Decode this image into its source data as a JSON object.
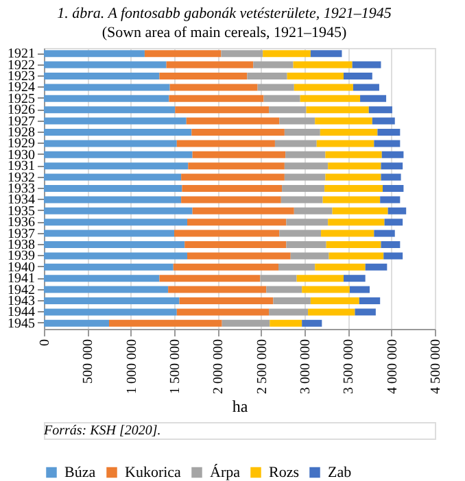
{
  "chart_data": {
    "type": "bar",
    "orientation": "horizontal",
    "stacked": true,
    "title": "1. ábra. A fontosabb gabonák vetésterülete, 1921–1945",
    "subtitle": "(Sown area of main cereals, 1921–1945)",
    "xlabel": "ha",
    "categories": [
      "1921",
      "1922",
      "1923",
      "1924",
      "1925",
      "1926",
      "1927",
      "1928",
      "1929",
      "1930",
      "1931",
      "1932",
      "1933",
      "1934",
      "1935",
      "1936",
      "1937",
      "1938",
      "1939",
      "1940",
      "1941",
      "1942",
      "1943",
      "1944",
      "1945"
    ],
    "series": [
      {
        "name": "Búza",
        "color": "#5b9bd5",
        "values": [
          1160000,
          1410000,
          1330000,
          1450000,
          1440000,
          1510000,
          1640000,
          1700000,
          1530000,
          1710000,
          1660000,
          1580000,
          1590000,
          1580000,
          1710000,
          1650000,
          1500000,
          1620000,
          1650000,
          1490000,
          1330000,
          1430000,
          1560000,
          1530000,
          750000
        ]
      },
      {
        "name": "Kukorica",
        "color": "#ed7d31",
        "values": [
          880000,
          1000000,
          1010000,
          1010000,
          1090000,
          1080000,
          1070000,
          1070000,
          1130000,
          1070000,
          1110000,
          1190000,
          1150000,
          1150000,
          1170000,
          1140000,
          1210000,
          1170000,
          1190000,
          1210000,
          1160000,
          1130000,
          1080000,
          1060000,
          1300000
        ]
      },
      {
        "name": "Árpa",
        "color": "#a5a5a5",
        "values": [
          480000,
          460000,
          460000,
          420000,
          420000,
          430000,
          410000,
          410000,
          480000,
          460000,
          500000,
          470000,
          490000,
          480000,
          440000,
          480000,
          480000,
          460000,
          440000,
          420000,
          420000,
          410000,
          430000,
          450000,
          550000
        ]
      },
      {
        "name": "Rozs",
        "color": "#ffc000",
        "values": [
          550000,
          680000,
          650000,
          680000,
          690000,
          720000,
          660000,
          660000,
          660000,
          650000,
          610000,
          640000,
          670000,
          660000,
          640000,
          650000,
          610000,
          630000,
          630000,
          580000,
          540000,
          550000,
          560000,
          540000,
          370000
        ]
      },
      {
        "name": "Zab",
        "color": "#4472c4",
        "values": [
          360000,
          330000,
          330000,
          300000,
          300000,
          270000,
          260000,
          260000,
          300000,
          250000,
          250000,
          230000,
          240000,
          230000,
          210000,
          210000,
          240000,
          220000,
          220000,
          250000,
          250000,
          230000,
          240000,
          240000,
          230000
        ]
      }
    ],
    "xlim": [
      0,
      4500000
    ],
    "xticks": [
      {
        "value": 0,
        "label": "0"
      },
      {
        "value": 500000,
        "label": "500 000"
      },
      {
        "value": 1000000,
        "label": "1 000 000"
      },
      {
        "value": 1500000,
        "label": "1 500 000"
      },
      {
        "value": 2000000,
        "label": "2 000 000"
      },
      {
        "value": 2500000,
        "label": "2 500 000"
      },
      {
        "value": 3000000,
        "label": "3 000 000"
      },
      {
        "value": 3500000,
        "label": "3 500 000"
      },
      {
        "value": 4000000,
        "label": "4 000 000"
      },
      {
        "value": 4500000,
        "label": "4 500 000"
      }
    ],
    "grid": "x",
    "legend": "bottom",
    "annotations": [
      "Forrás: KSH [2020]."
    ]
  }
}
